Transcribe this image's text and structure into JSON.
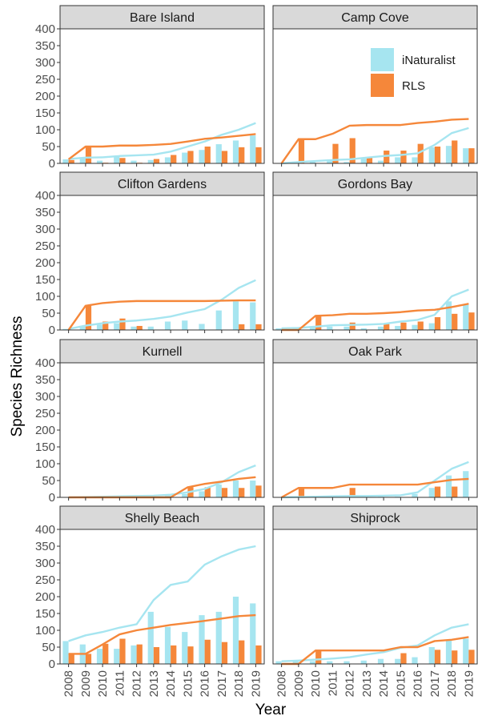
{
  "chart_data": {
    "type": "bar",
    "xlabel": "Year",
    "ylabel": "Species Richness",
    "ylim": [
      0,
      400
    ],
    "yticks": [
      0,
      50,
      100,
      150,
      200,
      250,
      300,
      350,
      400
    ],
    "x": [
      "2008",
      "2009",
      "2010",
      "2011",
      "2012",
      "2013",
      "2014",
      "2015",
      "2016",
      "2017",
      "2018",
      "2019"
    ],
    "grid": false,
    "legend": {
      "position": "inside-top-right",
      "entries": [
        {
          "name": "iNaturalist",
          "color": "#a6e5f0"
        },
        {
          "name": "RLS",
          "color": "#f5873a"
        }
      ]
    },
    "panels": [
      {
        "title": "Bare Island",
        "series": [
          {
            "name": "iNaturalist",
            "kind": "bar",
            "values": [
              12,
              18,
              8,
              22,
              8,
              10,
              18,
              32,
              40,
              57,
              68,
              83
            ]
          },
          {
            "name": "RLS",
            "kind": "bar",
            "values": [
              10,
              50,
              2,
              16,
              2,
              13,
              25,
              37,
              50,
              37,
              48,
              48
            ]
          },
          {
            "name": "iNaturalist",
            "kind": "line",
            "values": [
              13,
              17,
              18,
              22,
              24,
              26,
              35,
              50,
              65,
              85,
              100,
              120
            ]
          },
          {
            "name": "RLS",
            "kind": "line",
            "values": [
              12,
              50,
              50,
              53,
              53,
              55,
              58,
              65,
              73,
              77,
              82,
              87
            ]
          }
        ]
      },
      {
        "title": "Camp Cove",
        "series": [
          {
            "name": "iNaturalist",
            "kind": "bar",
            "values": [
              0,
              4,
              4,
              8,
              4,
              14,
              8,
              18,
              18,
              48,
              52,
              45
            ]
          },
          {
            "name": "RLS",
            "kind": "bar",
            "values": [
              0,
              72,
              0,
              58,
              75,
              18,
              38,
              38,
              58,
              50,
              68,
              45
            ]
          },
          {
            "name": "iNaturalist",
            "kind": "line",
            "values": [
              0,
              4,
              7,
              10,
              12,
              17,
              22,
              25,
              30,
              55,
              90,
              105
            ]
          },
          {
            "name": "RLS",
            "kind": "line",
            "values": [
              0,
              72,
              72,
              88,
              112,
              114,
              114,
              114,
              120,
              124,
              130,
              132
            ]
          }
        ]
      },
      {
        "title": "Clifton Gardens",
        "series": [
          {
            "name": "iNaturalist",
            "kind": "bar",
            "values": [
              3,
              12,
              16,
              20,
              10,
              10,
              25,
              28,
              18,
              58,
              85,
              82
            ]
          },
          {
            "name": "RLS",
            "kind": "bar",
            "values": [
              0,
              72,
              25,
              34,
              12,
              0,
              0,
              0,
              0,
              0,
              17,
              17
            ]
          },
          {
            "name": "iNaturalist",
            "kind": "line",
            "values": [
              3,
              13,
              20,
              25,
              28,
              33,
              40,
              52,
              62,
              90,
              125,
              148
            ]
          },
          {
            "name": "RLS",
            "kind": "line",
            "values": [
              0,
              72,
              80,
              84,
              86,
              86,
              86,
              86,
              86,
              87,
              88,
              88
            ]
          }
        ]
      },
      {
        "title": "Gordons Bay",
        "series": [
          {
            "name": "iNaturalist",
            "kind": "bar",
            "values": [
              5,
              5,
              8,
              10,
              10,
              5,
              10,
              12,
              15,
              20,
              85,
              75
            ]
          },
          {
            "name": "RLS",
            "kind": "bar",
            "values": [
              0,
              0,
              42,
              0,
              22,
              0,
              20,
              22,
              25,
              38,
              48,
              52
            ]
          },
          {
            "name": "iNaturalist",
            "kind": "line",
            "values": [
              5,
              6,
              10,
              14,
              15,
              16,
              18,
              25,
              30,
              45,
              100,
              120
            ]
          },
          {
            "name": "RLS",
            "kind": "line",
            "values": [
              0,
              0,
              42,
              44,
              48,
              48,
              50,
              53,
              58,
              60,
              68,
              78
            ]
          }
        ]
      },
      {
        "title": "Kurnell",
        "series": [
          {
            "name": "iNaturalist",
            "kind": "bar",
            "values": [
              0,
              2,
              2,
              2,
              2,
              2,
              5,
              10,
              18,
              38,
              50,
              50
            ]
          },
          {
            "name": "RLS",
            "kind": "bar",
            "values": [
              0,
              0,
              0,
              0,
              0,
              0,
              0,
              30,
              30,
              28,
              28,
              35
            ]
          },
          {
            "name": "iNaturalist",
            "kind": "line",
            "values": [
              0,
              1,
              2,
              3,
              4,
              5,
              8,
              15,
              25,
              45,
              75,
              95
            ]
          },
          {
            "name": "RLS",
            "kind": "line",
            "values": [
              0,
              0,
              0,
              0,
              0,
              0,
              0,
              30,
              40,
              47,
              55,
              60
            ]
          }
        ]
      },
      {
        "title": "Oak Park",
        "series": [
          {
            "name": "iNaturalist",
            "kind": "bar",
            "values": [
              0,
              2,
              2,
              2,
              2,
              2,
              2,
              2,
              10,
              28,
              65,
              78
            ]
          },
          {
            "name": "RLS",
            "kind": "bar",
            "values": [
              0,
              28,
              0,
              0,
              28,
              0,
              0,
              0,
              0,
              32,
              32,
              0
            ]
          },
          {
            "name": "iNaturalist",
            "kind": "line",
            "values": [
              0,
              1,
              2,
              3,
              4,
              4,
              5,
              6,
              15,
              50,
              85,
              105
            ]
          },
          {
            "name": "RLS",
            "kind": "line",
            "values": [
              0,
              28,
              28,
              28,
              38,
              38,
              38,
              38,
              38,
              45,
              52,
              55
            ]
          }
        ]
      },
      {
        "title": "Shelly Beach",
        "series": [
          {
            "name": "iNaturalist",
            "kind": "bar",
            "values": [
              68,
              58,
              45,
              45,
              55,
              155,
              110,
              95,
              145,
              155,
              200,
              180
            ]
          },
          {
            "name": "RLS",
            "kind": "bar",
            "values": [
              30,
              30,
              60,
              75,
              58,
              50,
              55,
              52,
              72,
              65,
              70,
              55
            ]
          },
          {
            "name": "iNaturalist",
            "kind": "line",
            "values": [
              68,
              85,
              95,
              108,
              118,
              190,
              235,
              245,
              295,
              320,
              340,
              350
            ]
          },
          {
            "name": "RLS",
            "kind": "line",
            "values": [
              30,
              30,
              58,
              88,
              100,
              108,
              116,
              122,
              128,
              135,
              142,
              145
            ]
          }
        ]
      },
      {
        "title": "Shiprock",
        "series": [
          {
            "name": "iNaturalist",
            "kind": "bar",
            "values": [
              8,
              8,
              8,
              8,
              8,
              10,
              15,
              15,
              20,
              50,
              70,
              75
            ]
          },
          {
            "name": "RLS",
            "kind": "bar",
            "values": [
              0,
              0,
              40,
              0,
              0,
              0,
              0,
              32,
              0,
              42,
              40,
              42
            ]
          },
          {
            "name": "iNaturalist",
            "kind": "line",
            "values": [
              8,
              10,
              13,
              16,
              20,
              28,
              35,
              48,
              55,
              85,
              108,
              118
            ]
          },
          {
            "name": "RLS",
            "kind": "line",
            "values": [
              0,
              0,
              40,
              40,
              40,
              40,
              40,
              50,
              50,
              68,
              72,
              80
            ]
          }
        ]
      }
    ]
  }
}
